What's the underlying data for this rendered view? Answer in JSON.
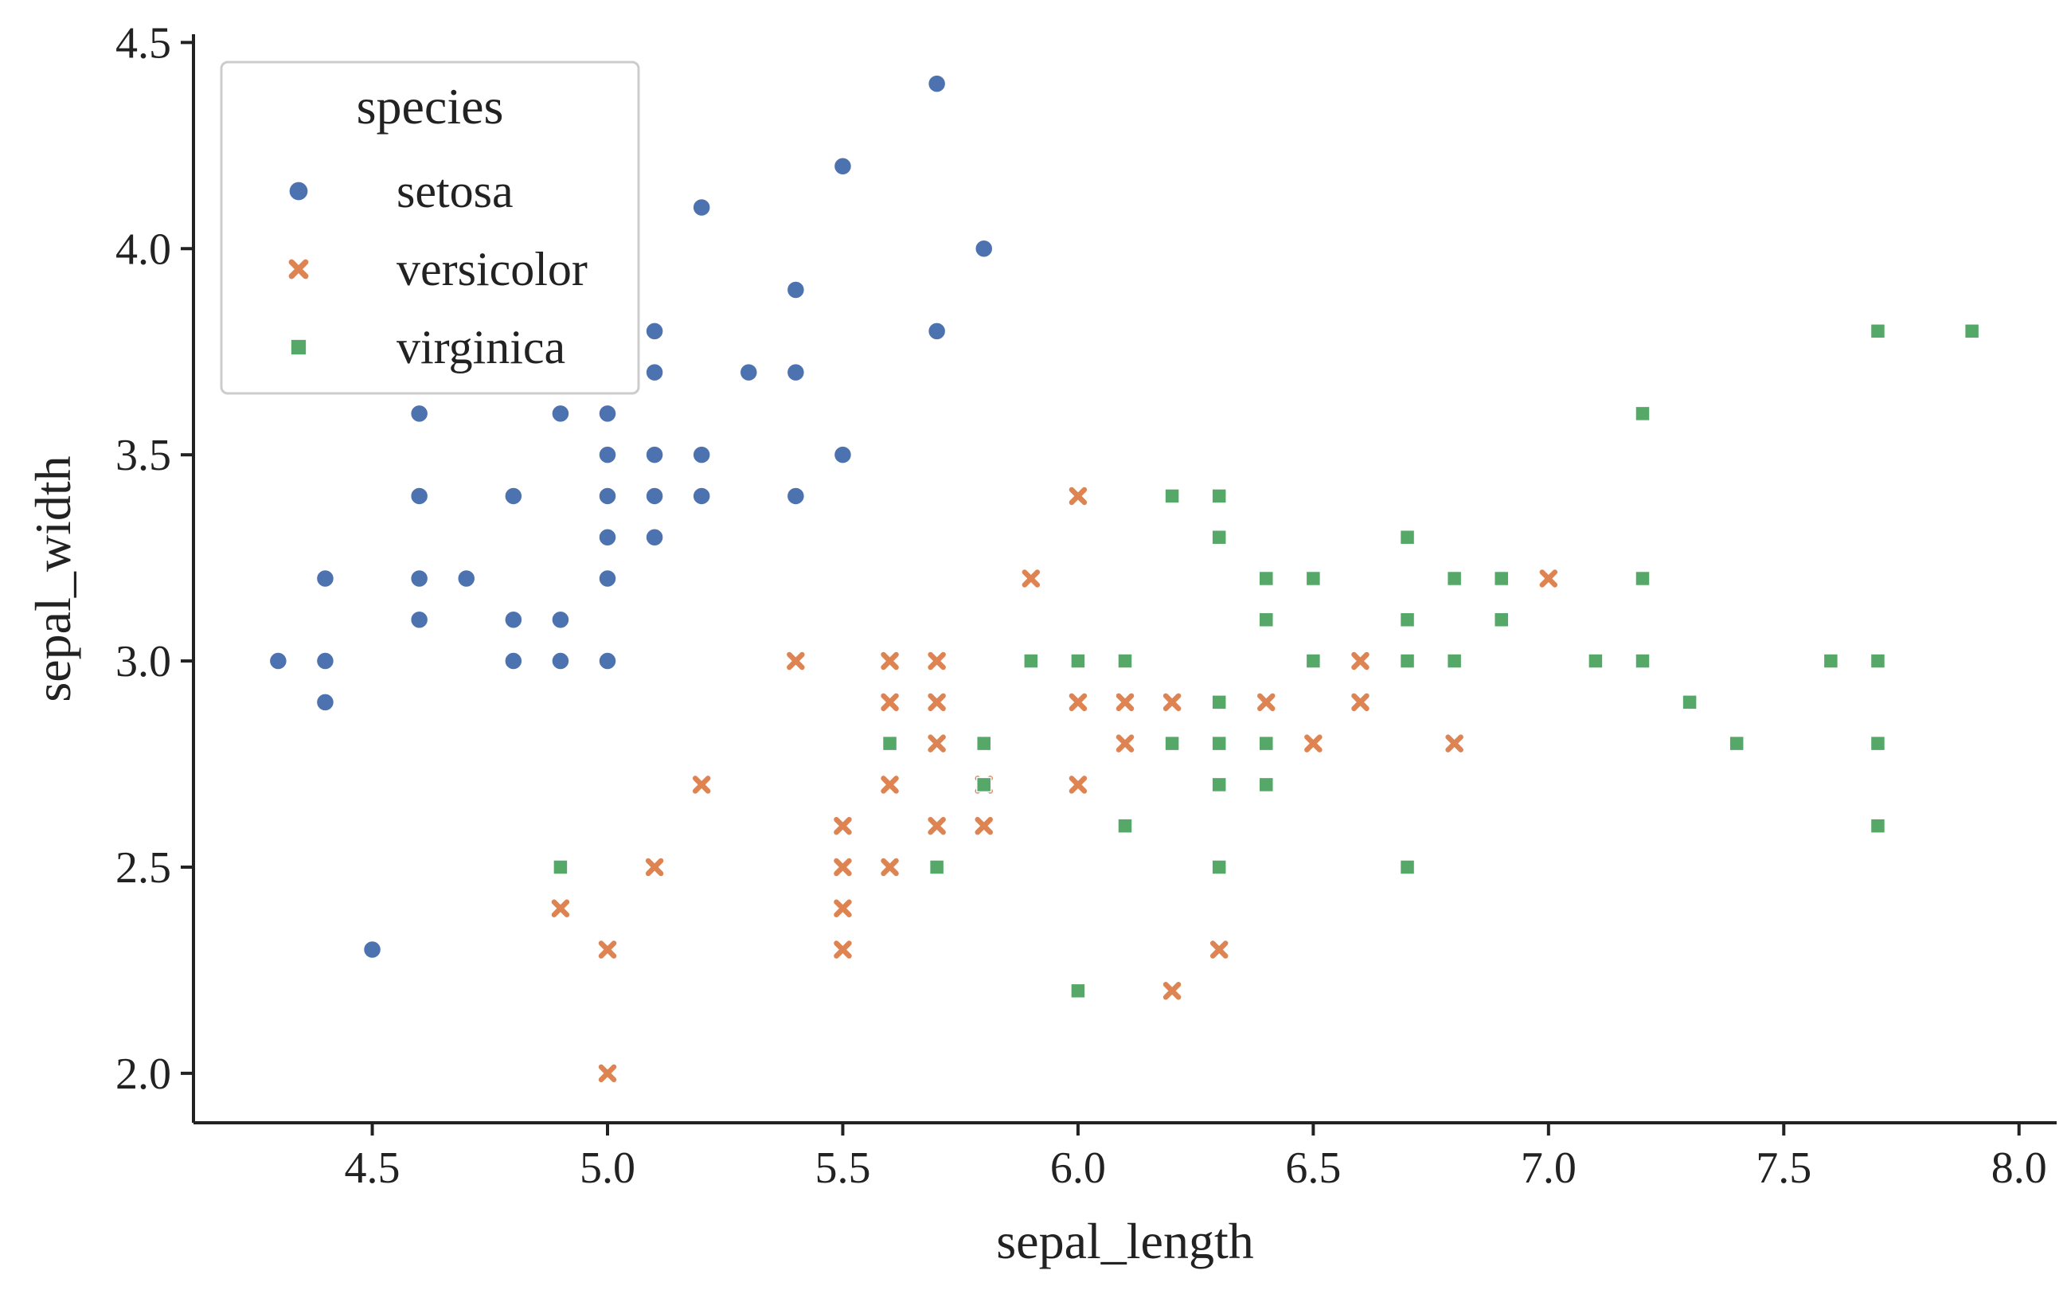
{
  "chart_data": {
    "type": "scatter",
    "title": "",
    "xlabel": "sepal_length",
    "ylabel": "sepal_width",
    "xlim": [
      4.12,
      8.08
    ],
    "ylim": [
      1.88,
      4.52
    ],
    "xticks": [
      4.5,
      5.0,
      5.5,
      6.0,
      6.5,
      7.0,
      7.5,
      8.0
    ],
    "xtick_labels": [
      "4.5",
      "5.0",
      "5.5",
      "6.0",
      "6.5",
      "7.0",
      "7.5",
      "8.0"
    ],
    "yticks": [
      2.0,
      2.5,
      3.0,
      3.5,
      4.0,
      4.5
    ],
    "ytick_labels": [
      "2.0",
      "2.5",
      "3.0",
      "3.5",
      "4.0",
      "4.5"
    ],
    "grid": false,
    "legend": {
      "title": "species",
      "placement": "upper-left"
    },
    "series": [
      {
        "name": "setosa",
        "marker": "circle",
        "color": "#4c72b0",
        "points": [
          [
            4.3,
            3.0
          ],
          [
            4.4,
            3.2
          ],
          [
            4.4,
            3.0
          ],
          [
            4.4,
            2.9
          ],
          [
            4.5,
            2.3
          ],
          [
            4.6,
            3.6
          ],
          [
            4.6,
            3.4
          ],
          [
            4.6,
            3.2
          ],
          [
            4.6,
            3.1
          ],
          [
            4.7,
            3.2
          ],
          [
            4.8,
            3.4
          ],
          [
            4.8,
            3.1
          ],
          [
            4.8,
            3.0
          ],
          [
            4.9,
            3.6
          ],
          [
            4.9,
            3.1
          ],
          [
            4.9,
            3.0
          ],
          [
            5.0,
            3.6
          ],
          [
            5.0,
            3.5
          ],
          [
            5.0,
            3.4
          ],
          [
            5.0,
            3.3
          ],
          [
            5.0,
            3.2
          ],
          [
            5.0,
            3.0
          ],
          [
            5.1,
            3.8
          ],
          [
            5.1,
            3.7
          ],
          [
            5.1,
            3.5
          ],
          [
            5.1,
            3.4
          ],
          [
            5.1,
            3.3
          ],
          [
            5.2,
            4.1
          ],
          [
            5.2,
            3.5
          ],
          [
            5.2,
            3.4
          ],
          [
            5.3,
            3.7
          ],
          [
            5.4,
            3.9
          ],
          [
            5.4,
            3.7
          ],
          [
            5.4,
            3.4
          ],
          [
            5.5,
            4.2
          ],
          [
            5.5,
            3.5
          ],
          [
            5.7,
            4.4
          ],
          [
            5.7,
            3.8
          ],
          [
            5.8,
            4.0
          ]
        ]
      },
      {
        "name": "versicolor",
        "marker": "x",
        "color": "#dd8452",
        "points": [
          [
            4.9,
            2.4
          ],
          [
            5.0,
            2.3
          ],
          [
            5.0,
            2.0
          ],
          [
            5.1,
            2.5
          ],
          [
            5.2,
            2.7
          ],
          [
            5.4,
            3.0
          ],
          [
            5.5,
            2.6
          ],
          [
            5.5,
            2.5
          ],
          [
            5.5,
            2.4
          ],
          [
            5.5,
            2.3
          ],
          [
            5.6,
            3.0
          ],
          [
            5.6,
            2.9
          ],
          [
            5.6,
            2.7
          ],
          [
            5.6,
            2.5
          ],
          [
            5.7,
            3.0
          ],
          [
            5.7,
            2.9
          ],
          [
            5.7,
            2.8
          ],
          [
            5.7,
            2.6
          ],
          [
            5.8,
            2.7
          ],
          [
            5.8,
            2.6
          ],
          [
            5.9,
            3.2
          ],
          [
            6.0,
            3.4
          ],
          [
            6.0,
            2.9
          ],
          [
            6.0,
            2.7
          ],
          [
            6.1,
            2.9
          ],
          [
            6.1,
            2.8
          ],
          [
            6.2,
            2.9
          ],
          [
            6.2,
            2.2
          ],
          [
            6.3,
            2.3
          ],
          [
            6.4,
            2.9
          ],
          [
            6.5,
            2.8
          ],
          [
            6.6,
            3.0
          ],
          [
            6.6,
            2.9
          ],
          [
            6.8,
            2.8
          ],
          [
            7.0,
            3.2
          ]
        ]
      },
      {
        "name": "virginica",
        "marker": "square",
        "color": "#55a868",
        "points": [
          [
            4.9,
            2.5
          ],
          [
            5.6,
            2.8
          ],
          [
            5.7,
            2.5
          ],
          [
            5.8,
            2.8
          ],
          [
            5.8,
            2.7
          ],
          [
            5.9,
            3.0
          ],
          [
            6.0,
            3.0
          ],
          [
            6.0,
            2.2
          ],
          [
            6.1,
            3.0
          ],
          [
            6.1,
            2.6
          ],
          [
            6.2,
            3.4
          ],
          [
            6.2,
            2.8
          ],
          [
            6.3,
            3.4
          ],
          [
            6.3,
            3.3
          ],
          [
            6.3,
            2.9
          ],
          [
            6.3,
            2.8
          ],
          [
            6.3,
            2.7
          ],
          [
            6.3,
            2.5
          ],
          [
            6.4,
            3.2
          ],
          [
            6.4,
            3.1
          ],
          [
            6.4,
            2.8
          ],
          [
            6.4,
            2.7
          ],
          [
            6.5,
            3.2
          ],
          [
            6.5,
            3.0
          ],
          [
            6.7,
            3.3
          ],
          [
            6.7,
            3.1
          ],
          [
            6.7,
            3.0
          ],
          [
            6.7,
            2.5
          ],
          [
            6.8,
            3.2
          ],
          [
            6.8,
            3.0
          ],
          [
            6.9,
            3.2
          ],
          [
            6.9,
            3.1
          ],
          [
            7.1,
            3.0
          ],
          [
            7.2,
            3.6
          ],
          [
            7.2,
            3.2
          ],
          [
            7.2,
            3.0
          ],
          [
            7.3,
            2.9
          ],
          [
            7.4,
            2.8
          ],
          [
            7.6,
            3.0
          ],
          [
            7.7,
            3.8
          ],
          [
            7.7,
            3.0
          ],
          [
            7.7,
            2.8
          ],
          [
            7.7,
            2.6
          ],
          [
            7.9,
            3.8
          ]
        ]
      }
    ]
  }
}
